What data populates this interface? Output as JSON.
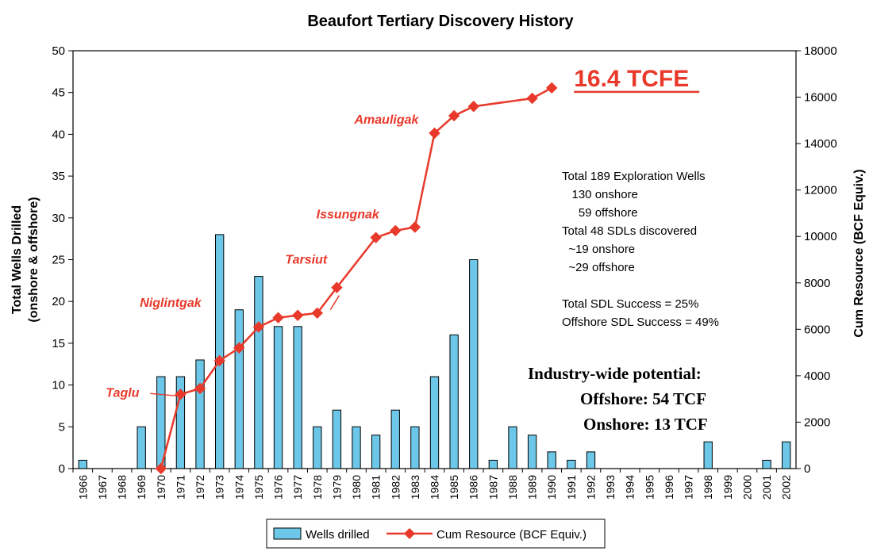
{
  "title": "Beaufort Tertiary Discovery History",
  "info_lines": [
    "Total 189 Exploration Wells",
    "   130 onshore",
    "     59 offshore",
    "Total 48 SDLs discovered",
    "  ~19 onshore",
    "  ~29 offshore",
    "",
    "Total SDL Success = 25%",
    "Offshore SDL Success = 49%"
  ],
  "industry": {
    "heading": "Industry-wide potential:",
    "offshore": "Offshore:  54 TCF",
    "onshore": "Onshore:  13 TCF"
  },
  "chart_data": {
    "type": "bar",
    "title": "Beaufort Tertiary Discovery History",
    "categories": [
      "1966",
      "1967",
      "1968",
      "1969",
      "1970",
      "1971",
      "1972",
      "1973",
      "1974",
      "1975",
      "1976",
      "1977",
      "1978",
      "1979",
      "1980",
      "1981",
      "1982",
      "1983",
      "1984",
      "1985",
      "1986",
      "1987",
      "1988",
      "1989",
      "1990",
      "1991",
      "1992",
      "1993",
      "1994",
      "1995",
      "1996",
      "1997",
      "1998",
      "1999",
      "2000",
      "2001",
      "2002"
    ],
    "ylabel": "Total Wells Drilled (onshore & offshore)",
    "ylabel_lines": [
      "Total Wells Drilled",
      "(onshore & offshore)"
    ],
    "y2label": "Cum Resource (BCF Equiv.)",
    "ylim": [
      0,
      50
    ],
    "yticks": [
      0,
      5,
      10,
      15,
      20,
      25,
      30,
      35,
      40,
      45,
      50
    ],
    "y2lim": [
      0,
      18000
    ],
    "y2ticks": [
      0,
      2000,
      4000,
      6000,
      8000,
      10000,
      12000,
      14000,
      16000,
      18000
    ],
    "grid": false,
    "legend_position": "bottom-center",
    "series": [
      {
        "name": "Wells drilled",
        "kind": "bar",
        "axis": "left",
        "color": "#6cc7e8",
        "values": [
          1,
          0,
          0,
          5,
          11,
          11,
          13,
          28,
          19,
          23,
          17,
          17,
          5,
          7,
          5,
          4,
          7,
          5,
          11,
          16,
          25,
          1,
          5,
          4,
          2,
          1,
          2,
          0,
          0,
          0,
          0,
          0,
          3.2,
          0,
          0,
          1,
          3.2
        ]
      },
      {
        "name": "Cum Resource (BCF Equiv.)",
        "kind": "line",
        "axis": "right",
        "color": "#e8392b",
        "points": [
          {
            "x": "1970",
            "y": 0
          },
          {
            "x": "1971",
            "y": 3200
          },
          {
            "x": "1972",
            "y": 3450
          },
          {
            "x": "1973",
            "y": 4650
          },
          {
            "x": "1974",
            "y": 5200
          },
          {
            "x": "1975",
            "y": 6100
          },
          {
            "x": "1976",
            "y": 6500
          },
          {
            "x": "1977",
            "y": 6600
          },
          {
            "x": "1978",
            "y": 6700
          },
          {
            "x": "1979",
            "y": 7800
          },
          {
            "x": "1981",
            "y": 9950
          },
          {
            "x": "1982",
            "y": 10250
          },
          {
            "x": "1983",
            "y": 10400
          },
          {
            "x": "1984",
            "y": 14450
          },
          {
            "x": "1985",
            "y": 15200
          },
          {
            "x": "1986",
            "y": 15600
          },
          {
            "x": "1989",
            "y": 15950
          },
          {
            "x": "1990",
            "y": 16400
          }
        ]
      }
    ],
    "annotations": [
      {
        "text": "Taglu",
        "x": "1971"
      },
      {
        "text": "Niglintgak",
        "x": "1974"
      },
      {
        "text": "Tarsiut",
        "x": "1979"
      },
      {
        "text": "Issungnak",
        "x": "1981"
      },
      {
        "text": "Amauligak",
        "x": "1984"
      },
      {
        "text": "16.4 TCFE",
        "x": "1990"
      }
    ]
  }
}
